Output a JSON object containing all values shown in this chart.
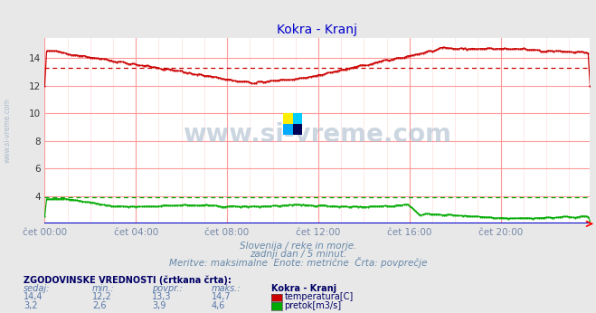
{
  "title": "Kokra - Kranj",
  "title_color": "#0000cc",
  "bg_color": "#e8e8e8",
  "plot_bg_color": "#ffffff",
  "x_label_color": "#7788aa",
  "subtitle_lines": [
    "Slovenija / reke in morje.",
    "zadnji dan / 5 minut.",
    "Meritve: maksimalne  Enote: metrične  Črta: povprečje"
  ],
  "watermark_text": "www.si-vreme.com",
  "watermark_color": "#aabbcc",
  "y_ticks": [
    4,
    6,
    8,
    10,
    12,
    14
  ],
  "y_min": 2.0,
  "y_max": 15.5,
  "x_ticks_labels": [
    "čet 00:00",
    "čet 04:00",
    "čet 08:00",
    "čet 12:00",
    "čet 16:00",
    "čet 20:00"
  ],
  "x_ticks_pos": [
    0,
    48,
    96,
    144,
    192,
    240
  ],
  "x_max": 287,
  "grid_color_major": "#ff9999",
  "grid_color_minor": "#ffdddd",
  "axis_color": "#0000cc",
  "temp_color": "#cc0000",
  "flow_color": "#00aa00",
  "temp_avg": 13.3,
  "flow_avg": 3.9,
  "legend_title": "ZGODOVINSKE VREDNOSTI (črtkana črta):",
  "legend_headers": [
    "sedaj:",
    "min.:",
    "povpr.:",
    "maks.:",
    "Kokra - Kranj"
  ],
  "legend_rows": [
    {
      "sedaj": "14,4",
      "min": "12,2",
      "povpr": "13,3",
      "maks": "14,7",
      "label": "temperatura[C]",
      "color": "#cc0000"
    },
    {
      "sedaj": "3,2",
      "min": "2,6",
      "povpr": "3,9",
      "maks": "4,6",
      "label": "pretok[m3/s]",
      "color": "#00aa00"
    }
  ],
  "left_label": "www.si-vreme.com",
  "left_label_color": "#aabbcc",
  "logo_colors": [
    "#ffee00",
    "#00ccff",
    "#00aaff",
    "#000055"
  ]
}
